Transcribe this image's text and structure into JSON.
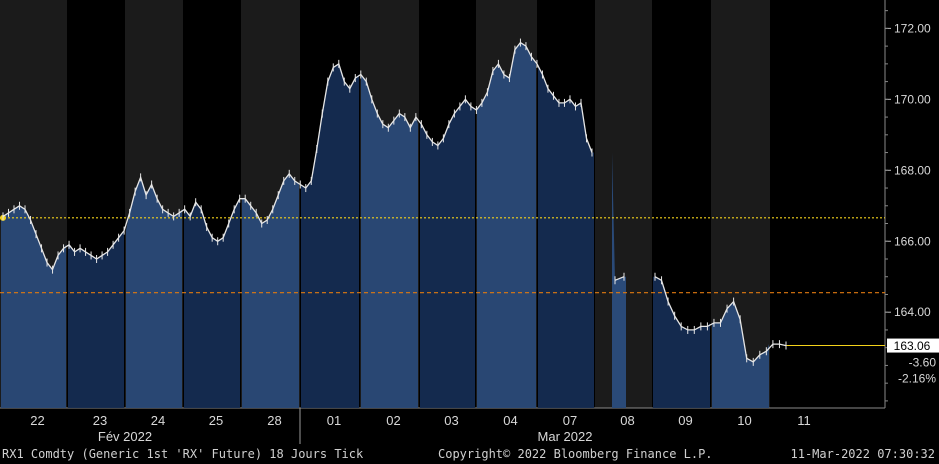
{
  "chart_data": {
    "type": "line",
    "ylim": [
      161.3,
      172.8
    ],
    "y_ticks": [
      164.0,
      166.0,
      168.0,
      170.0,
      172.0
    ],
    "y_tick_labels": [
      "164.00",
      "166.00",
      "168.00",
      "170.00",
      "172.00"
    ],
    "x_day_labels": [
      "22",
      "23",
      "24",
      "25",
      "28",
      "01",
      "02",
      "03",
      "04",
      "07",
      "08",
      "09",
      "10",
      "11"
    ],
    "month_labels": [
      "Fév 2022",
      "Mar 2022"
    ],
    "reference_lines": [
      {
        "value": 166.66,
        "color": "#f4d21a",
        "style": "dotted"
      },
      {
        "value": 164.55,
        "color": "#e07a10",
        "style": "dashed"
      },
      {
        "value": 163.06,
        "color": "#f4d21a",
        "style": "solid"
      }
    ],
    "last_price": {
      "value": "163.06",
      "change": "-3.60",
      "change_pct": "-2.16%"
    },
    "series": [
      {
        "values": [
          166.7,
          166.8,
          166.9,
          167.0,
          166.9,
          166.6,
          166.2,
          165.8,
          165.4,
          165.2,
          165.6,
          165.8,
          165.9,
          165.7,
          165.8,
          165.7,
          165.6,
          165.5,
          165.6,
          165.7,
          165.9,
          166.1,
          166.3,
          166.8,
          167.4,
          167.8,
          167.3,
          167.6,
          167.2,
          166.9,
          166.8,
          166.7,
          166.8,
          166.9,
          166.7,
          167.1,
          166.9,
          166.4,
          166.1,
          166.0,
          166.1,
          166.5,
          166.9,
          167.2,
          167.2,
          167.0,
          166.8,
          166.5,
          166.6,
          166.9,
          167.3,
          167.7,
          167.9,
          167.7,
          167.6,
          167.5,
          167.7,
          168.6,
          169.6,
          170.5,
          170.9,
          171.0,
          170.5,
          170.3,
          170.6,
          170.7,
          170.5,
          170.0,
          169.6,
          169.3,
          169.2,
          169.4,
          169.6,
          169.5,
          169.2,
          169.5,
          169.3,
          169.0,
          168.8,
          168.7,
          168.9,
          169.3,
          169.6,
          169.8,
          170.0,
          169.8,
          169.7,
          169.9,
          170.2,
          170.8,
          171.0,
          170.7,
          170.6,
          171.4,
          171.6,
          171.5,
          171.2,
          171.0,
          170.7,
          170.3,
          170.1,
          169.9,
          169.9,
          170.0,
          169.8,
          169.9,
          168.9,
          168.5,
          164.9,
          165.0,
          165.0,
          164.9,
          164.3,
          163.9,
          163.6,
          163.5,
          163.5,
          163.6,
          163.6,
          163.7,
          163.7,
          164.1,
          164.3,
          163.8,
          162.7,
          162.6,
          162.8,
          162.9,
          163.1,
          163.1,
          163.06
        ],
        "color": "#e6e6e6"
      }
    ]
  },
  "footer": {
    "left": "RX1 Comdty (Generic 1st 'RX' Future) 18 Jours  Tick",
    "center": "Copyright© 2022 Bloomberg Finance L.P.",
    "right": "11-Mar-2022 07:30:32"
  }
}
